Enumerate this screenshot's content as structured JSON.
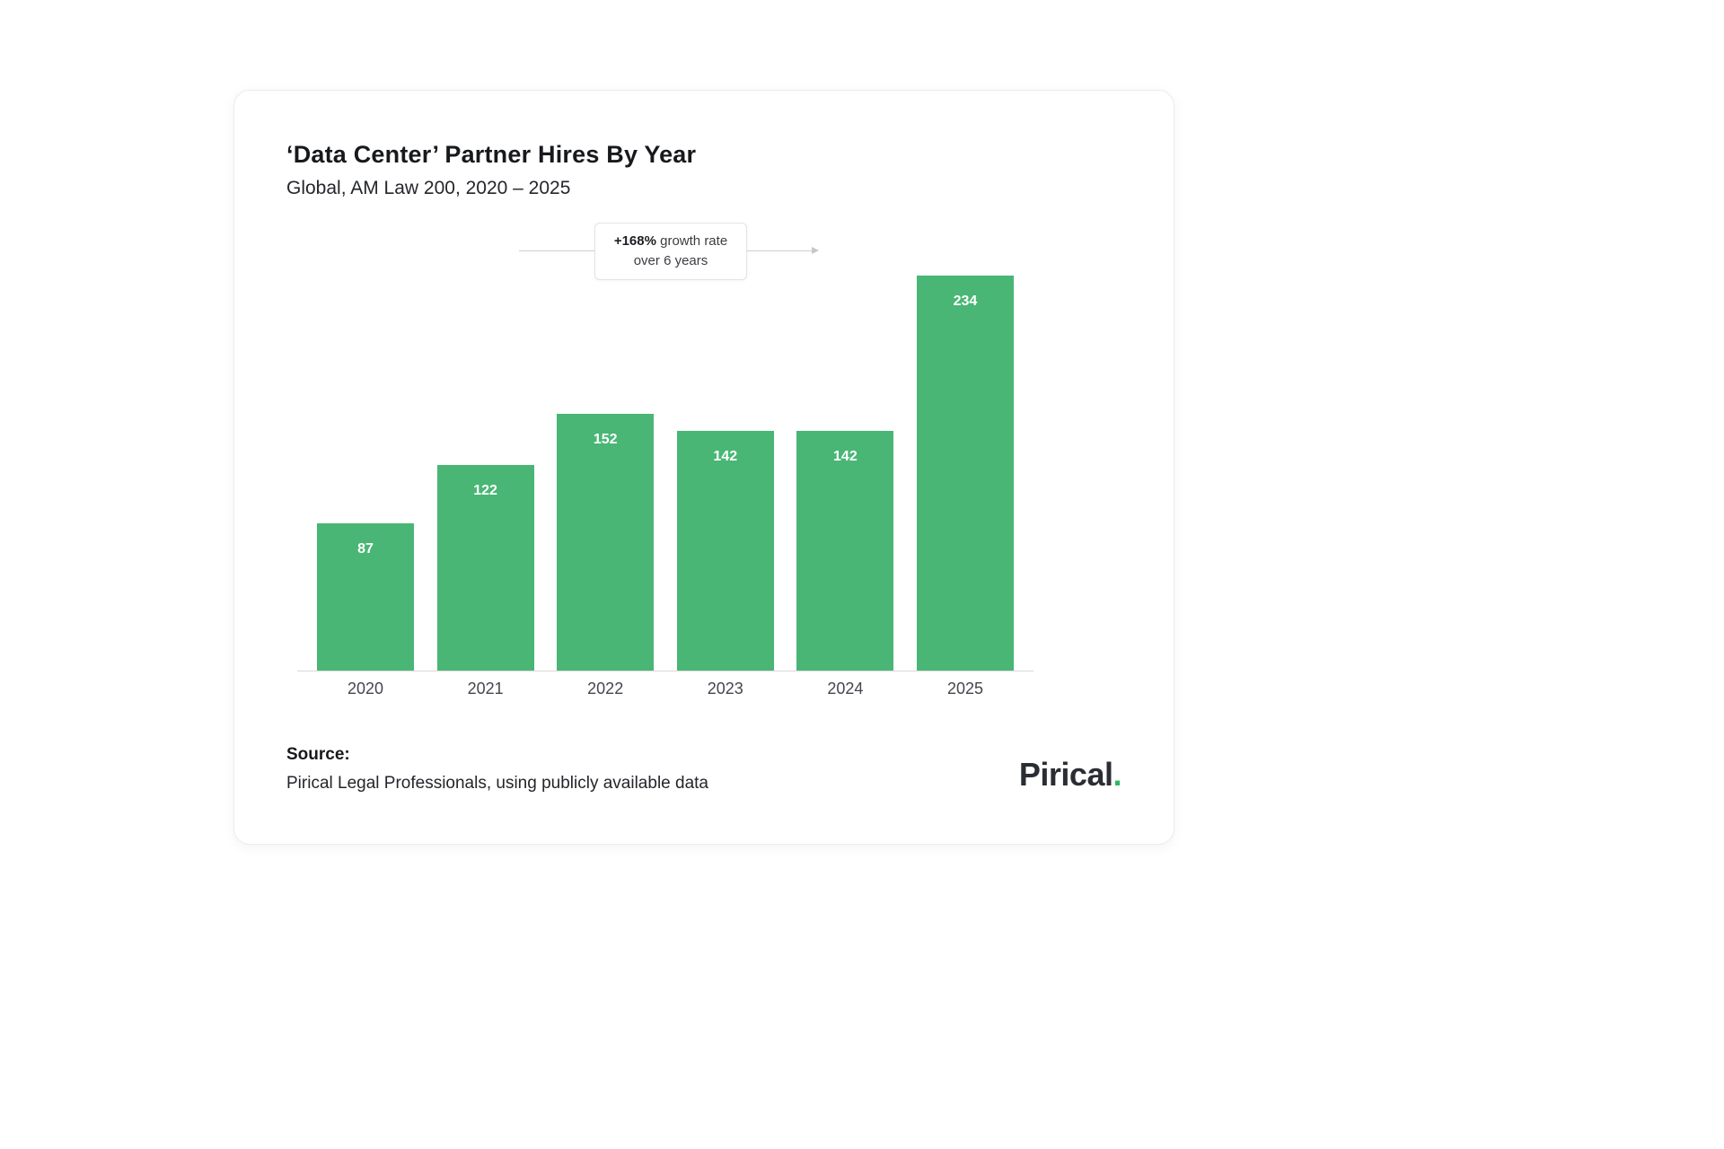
{
  "chart_data": {
    "type": "bar",
    "title": "‘Data Center’ Partner Hires By Year",
    "subtitle": "Global, AM Law 200, 2020 – 2025",
    "categories": [
      "2020",
      "2021",
      "2022",
      "2023",
      "2024",
      "2025"
    ],
    "values": [
      87,
      122,
      152,
      142,
      142,
      234
    ],
    "xlabel": "",
    "ylabel": "",
    "ylim": [
      0,
      250
    ],
    "grid": false,
    "legend": "none",
    "bar_color": "#49b675",
    "value_label_color": "#ffffff",
    "value_label_position": "inside-top",
    "annotation": {
      "highlight": "+168%",
      "line1_rest": "growth rate",
      "line2": "over 6 years",
      "full_text": "+168% growth rate over 6 years"
    }
  },
  "footer": {
    "source_label": "Source:",
    "source_text": "Pirical Legal Professionals, using publicly available data",
    "logo_text": "Pirical",
    "logo_dot": "."
  }
}
